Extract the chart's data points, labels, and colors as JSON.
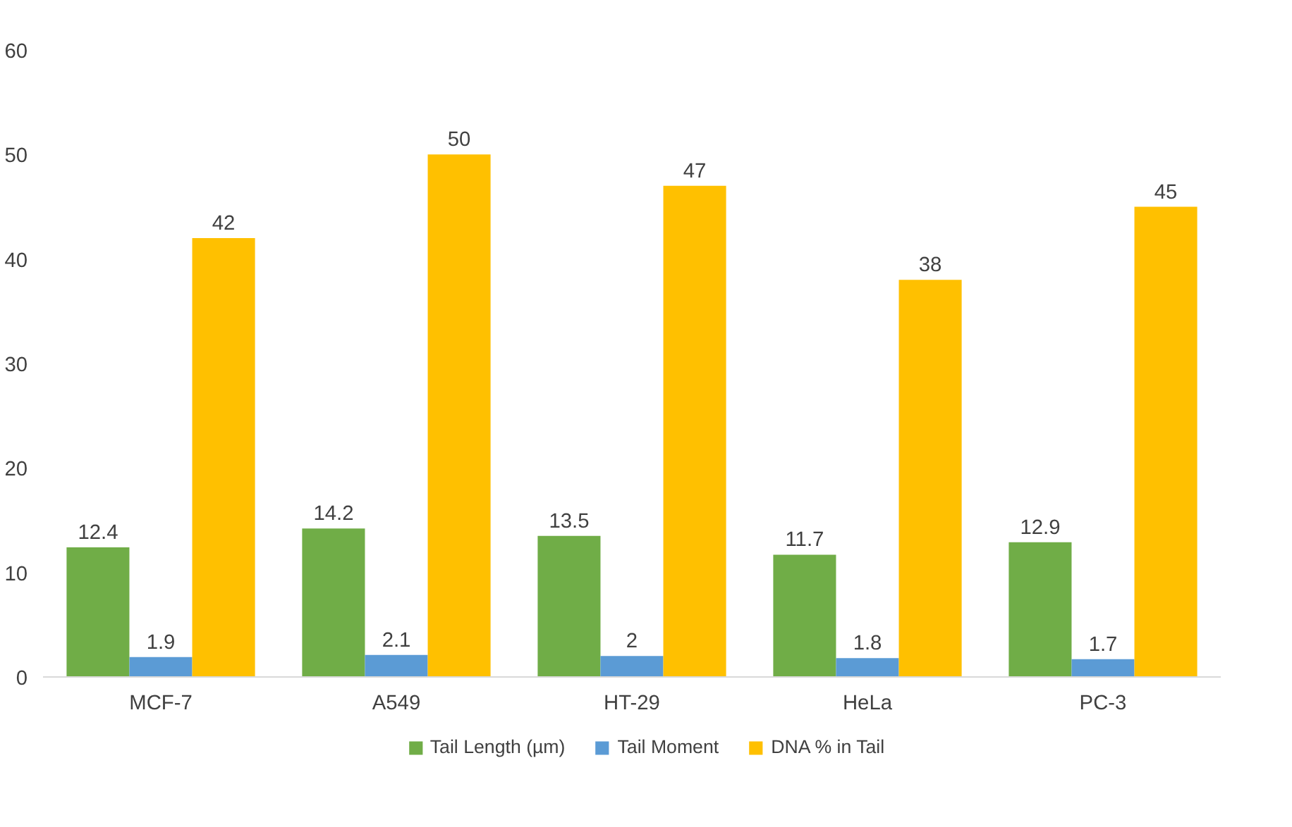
{
  "chart_data": {
    "type": "bar",
    "categories": [
      "MCF-7",
      "A549",
      "HT-29",
      "HeLa",
      "PC-3"
    ],
    "series": [
      {
        "name": "Tail Length (µm)",
        "color": "#70ad47",
        "values": [
          12.4,
          14.2,
          13.5,
          11.7,
          12.9
        ]
      },
      {
        "name": "Tail Moment",
        "color": "#5b9bd5",
        "values": [
          1.9,
          2.1,
          2,
          1.8,
          1.7
        ]
      },
      {
        "name": "DNA % in Tail",
        "color": "#ffc000",
        "values": [
          42,
          50,
          47,
          38,
          45
        ]
      }
    ],
    "ylim": [
      0,
      60
    ],
    "yticks": [
      0,
      10,
      20,
      30,
      40,
      50,
      60
    ],
    "grid": false,
    "legend": "bottom",
    "data_labels": true
  }
}
